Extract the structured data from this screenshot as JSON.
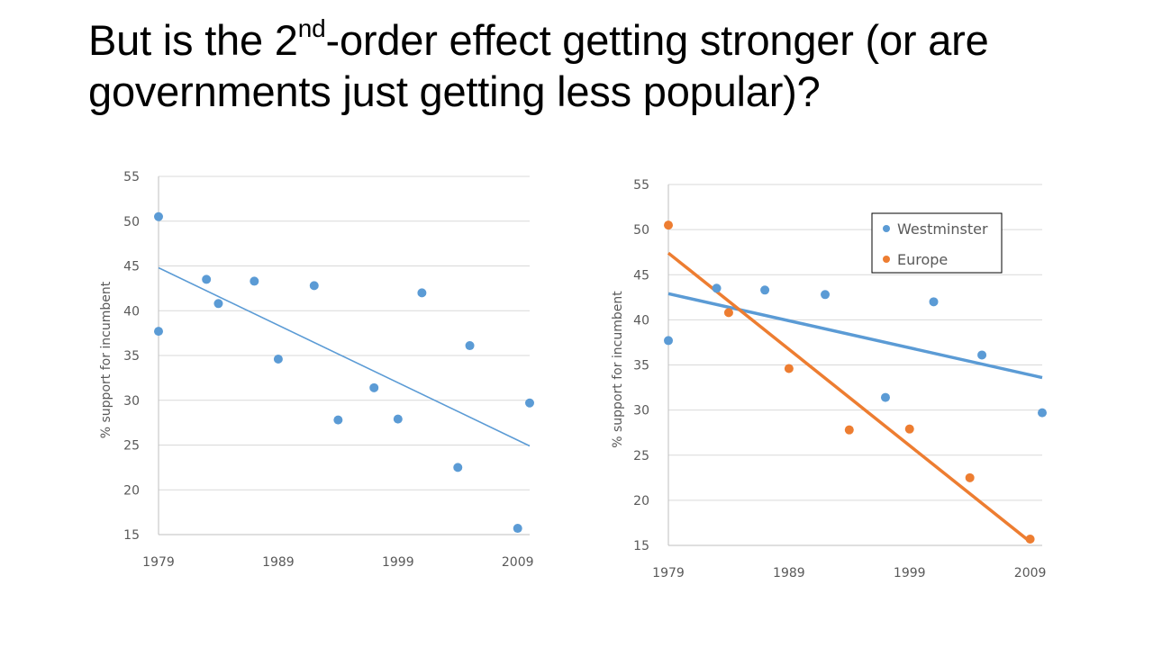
{
  "title": {
    "pre": "But is the 2",
    "sup": "nd",
    "post": "-order effect getting stronger (or are governments just getting less popular)?"
  },
  "chart_data": [
    {
      "type": "scatter",
      "title": "",
      "xlabel": "",
      "ylabel": "% support for incumbent",
      "xlim": [
        1979,
        2010
      ],
      "ylim": [
        15,
        55
      ],
      "xticks": [
        1979,
        1989,
        1999,
        2009
      ],
      "yticks": [
        15,
        20,
        25,
        30,
        35,
        40,
        45,
        50,
        55
      ],
      "grid": "horizontal",
      "series": [
        {
          "color": "#5b9bd5",
          "points": [
            [
              1979,
              50.5
            ],
            [
              1979,
              37.7
            ],
            [
              1983,
              43.5
            ],
            [
              1984,
              40.8
            ],
            [
              1987,
              43.3
            ],
            [
              1989,
              34.6
            ],
            [
              1992,
              42.8
            ],
            [
              1994,
              27.8
            ],
            [
              1997,
              31.4
            ],
            [
              1999,
              27.9
            ],
            [
              2001,
              42.0
            ],
            [
              2004,
              22.5
            ],
            [
              2005,
              36.1
            ],
            [
              2009,
              15.7
            ],
            [
              2010,
              29.7
            ]
          ],
          "trendline": [
            [
              1979,
              44.8
            ],
            [
              2010,
              24.9
            ]
          ]
        }
      ]
    },
    {
      "type": "scatter",
      "title": "",
      "xlabel": "",
      "ylabel": "% support for incumbent",
      "xlim": [
        1979,
        2010
      ],
      "ylim": [
        15,
        55
      ],
      "xticks": [
        1979,
        1989,
        1999,
        2009
      ],
      "yticks": [
        15,
        20,
        25,
        30,
        35,
        40,
        45,
        50,
        55
      ],
      "grid": "horizontal",
      "legend": "top-right",
      "series": [
        {
          "name": "Westminster",
          "color": "#5b9bd5",
          "points": [
            [
              1979,
              37.7
            ],
            [
              1983,
              43.5
            ],
            [
              1987,
              43.3
            ],
            [
              1992,
              42.8
            ],
            [
              1997,
              31.4
            ],
            [
              2001,
              42.0
            ],
            [
              2005,
              36.1
            ],
            [
              2010,
              29.7
            ]
          ],
          "trendline": [
            [
              1979,
              42.9
            ],
            [
              2010,
              33.6
            ]
          ]
        },
        {
          "name": "Europe",
          "color": "#ed7d31",
          "points": [
            [
              1979,
              50.5
            ],
            [
              1984,
              40.8
            ],
            [
              1989,
              34.6
            ],
            [
              1994,
              27.8
            ],
            [
              1999,
              27.9
            ],
            [
              2004,
              22.5
            ],
            [
              2009,
              15.7
            ]
          ],
          "trendline": [
            [
              1979,
              47.4
            ],
            [
              2009,
              15.4
            ]
          ]
        }
      ]
    }
  ]
}
